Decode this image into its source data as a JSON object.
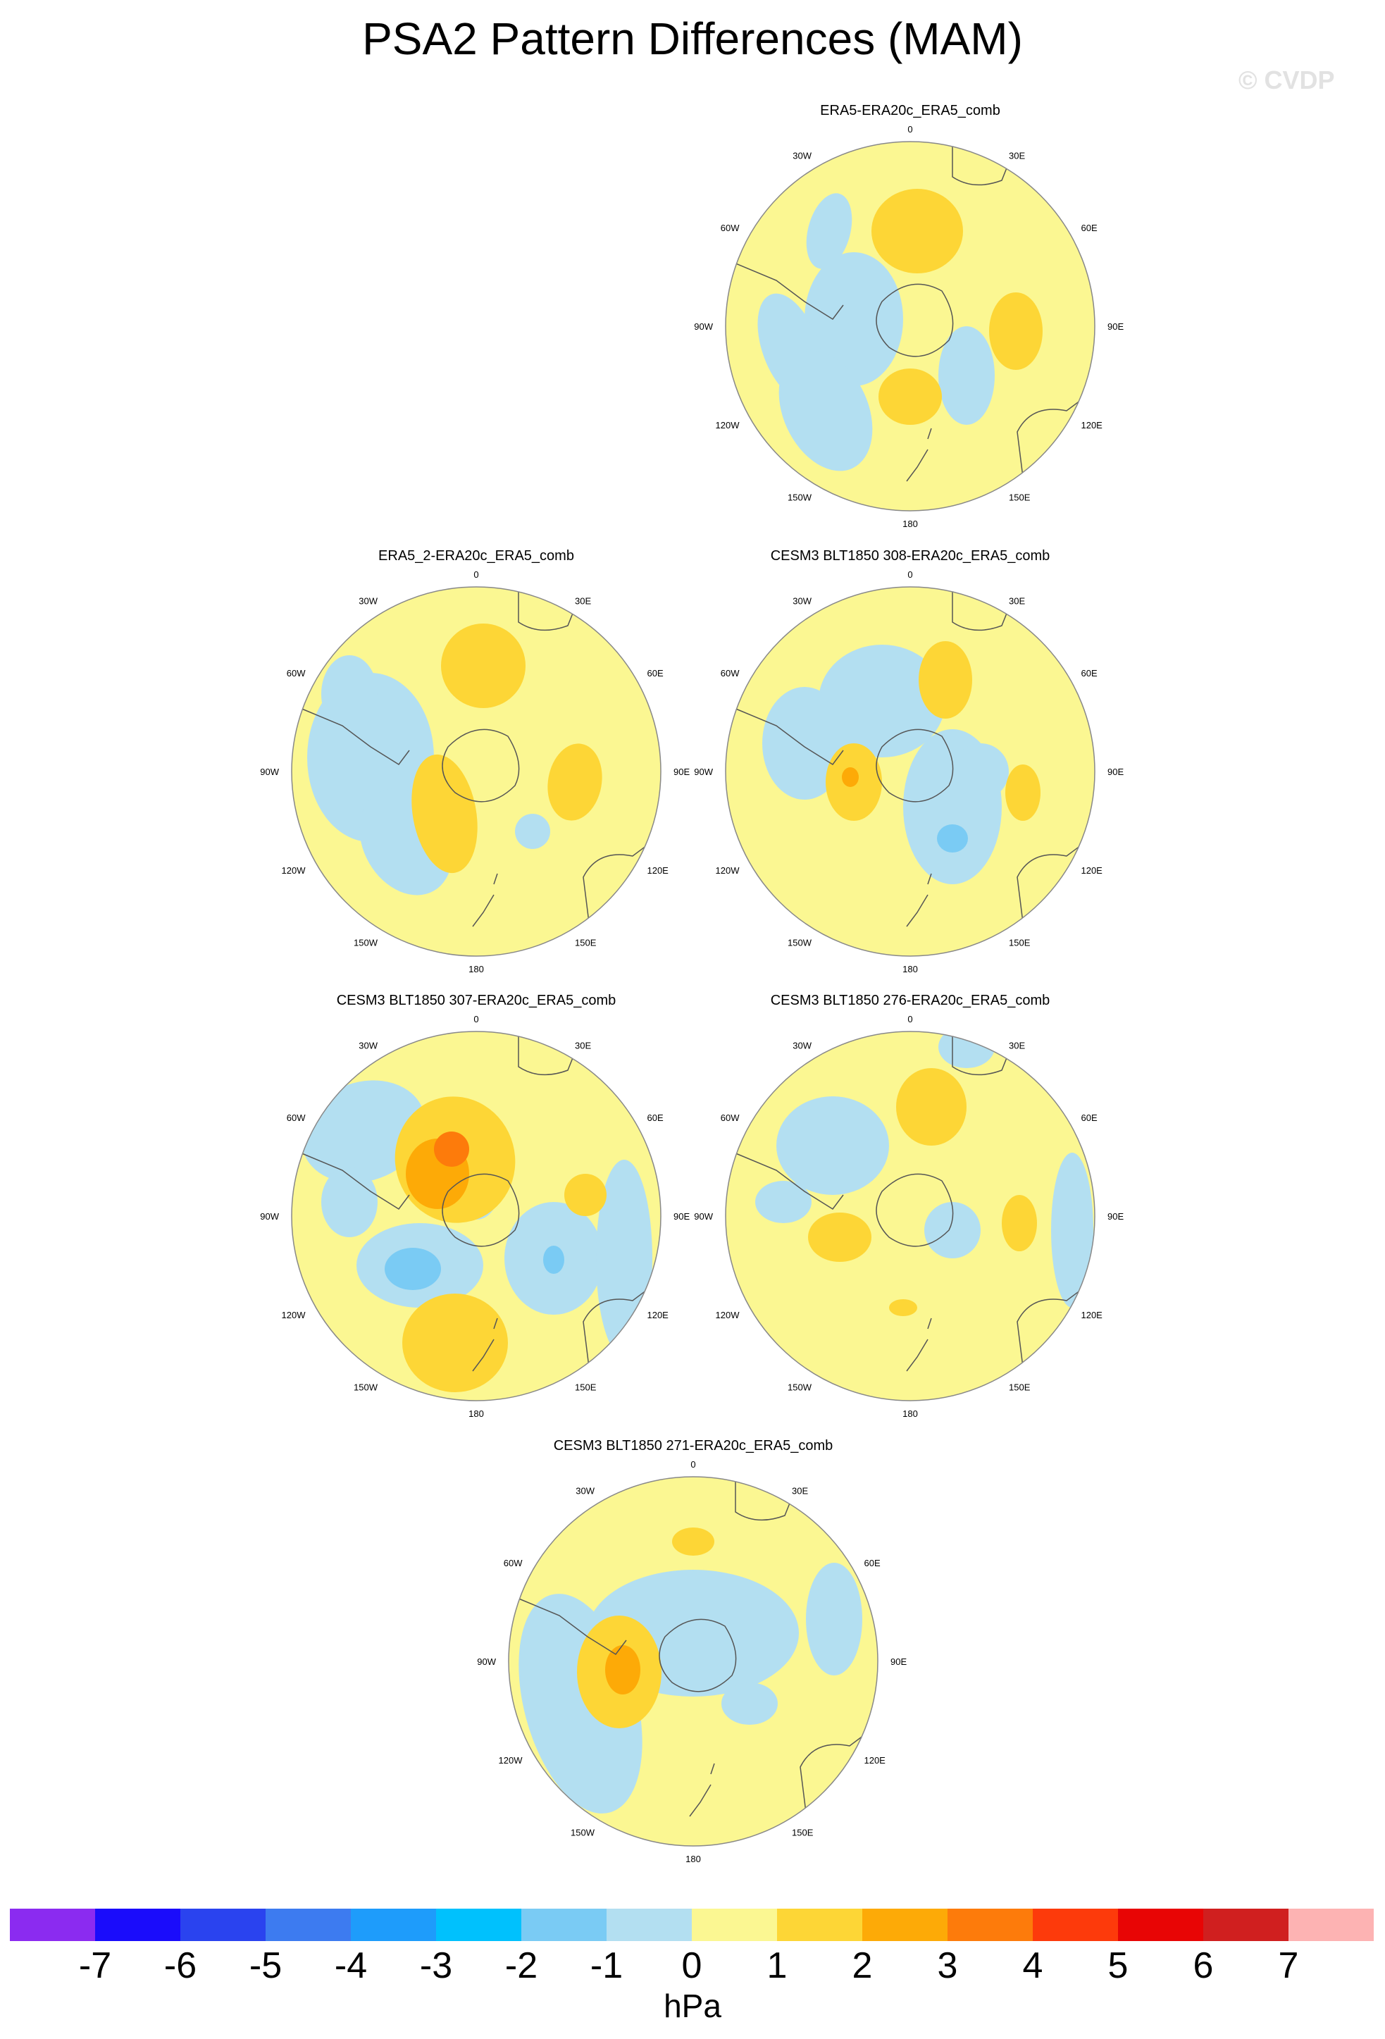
{
  "title": "PSA2 Pattern Differences (MAM)",
  "watermark": "© CVDP",
  "colors": {
    "ocean_neutral": "#fbf792",
    "pos1": "#fdd636",
    "pos2": "#fdaa07",
    "pos3": "#fd7b0b",
    "neg1": "#b3dff1",
    "neg2": "#7acbf4",
    "coast": "#555555"
  },
  "panels": [
    {
      "title": "ERA5-ERA20c_ERA5_comb"
    },
    {
      "title": "ERA5_2-ERA20c_ERA5_comb"
    },
    {
      "title": "CESM3 BLT1850 308-ERA20c_ERA5_comb"
    },
    {
      "title": "CESM3 BLT1850 307-ERA20c_ERA5_comb"
    },
    {
      "title": "CESM3 BLT1850 276-ERA20c_ERA5_comb"
    },
    {
      "title": "CESM3 BLT1850 271-ERA20c_ERA5_comb"
    }
  ],
  "lon_labels": [
    "0",
    "30E",
    "60E",
    "90E",
    "120E",
    "150E",
    "180",
    "150W",
    "120W",
    "90W",
    "60W",
    "30W"
  ],
  "colorbar": {
    "colors": [
      "#8b2bf0",
      "#1a0cfb",
      "#2a43ef",
      "#3d7bf0",
      "#1e9cfb",
      "#00c1fd",
      "#7acbf4",
      "#b3dff1",
      "#fbf792",
      "#fdd636",
      "#fdaa07",
      "#fd7b0b",
      "#fd3a0b",
      "#e80505",
      "#d01f1f",
      "#fdb3b3"
    ],
    "labels": [
      "-7",
      "-6",
      "-5",
      "-4",
      "-3",
      "-2",
      "-1",
      "0",
      "1",
      "2",
      "3",
      "4",
      "5",
      "6",
      "7"
    ],
    "units": "hPa"
  }
}
